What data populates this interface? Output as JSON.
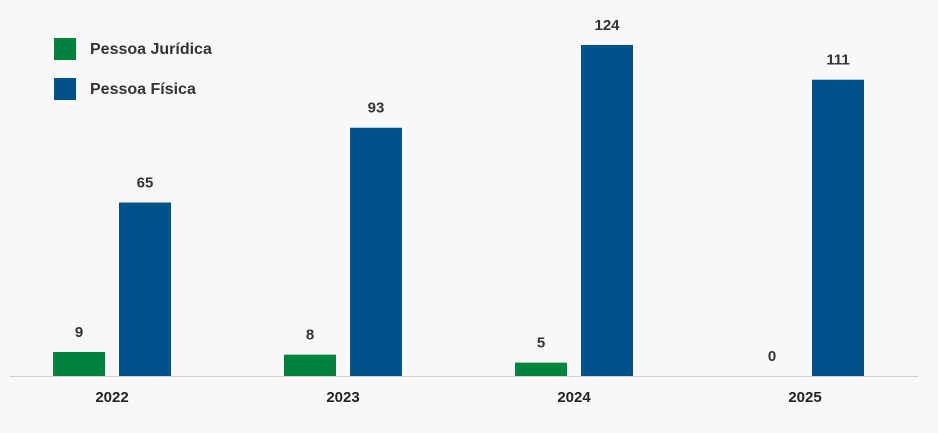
{
  "chart_data": {
    "type": "bar",
    "categories": [
      "2022",
      "2023",
      "2024",
      "2025"
    ],
    "series": [
      {
        "name": "Pessoa Jurídica",
        "color": "#00833c",
        "values": [
          9,
          8,
          5,
          0
        ]
      },
      {
        "name": "Pessoa Física",
        "color": "#00538a",
        "values": [
          65,
          93,
          124,
          111
        ]
      }
    ]
  }
}
